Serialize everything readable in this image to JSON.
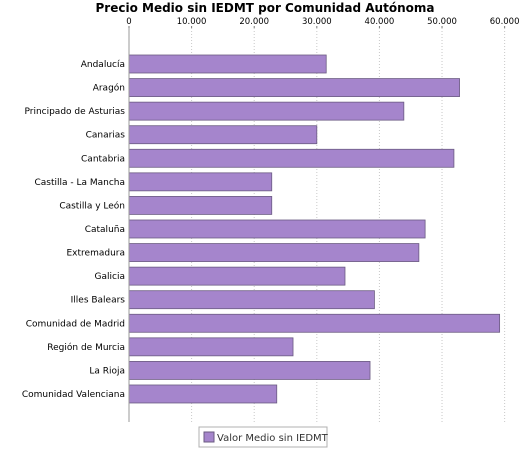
{
  "chart_data": {
    "type": "bar",
    "orientation": "horizontal",
    "title": "Precio Medio sin IEDMT por Comunidad Autónoma",
    "xlabel": "",
    "ylabel": "",
    "xlim": [
      0,
      62000
    ],
    "ticks": [
      0,
      10000,
      20000,
      30000,
      40000,
      50000,
      60000
    ],
    "tick_labels": [
      "0",
      "10.000",
      "20.000",
      "30.000",
      "40.000",
      "50.000",
      "60.000"
    ],
    "tick_position": "top",
    "grid": true,
    "legend": "bottom",
    "bar_color": "#a585cc",
    "categories": [
      "Andalucía",
      "Aragón",
      "Principado de Asturias",
      "Canarias",
      "Cantabria",
      "Castilla - La Mancha",
      "Castilla y León",
      "Cataluña",
      "Extremadura",
      "Galicia",
      "Illes Balears",
      "Comunidad de Madrid",
      "Región de Murcia",
      "La Rioja",
      "Comunidad Valenciana"
    ],
    "series": [
      {
        "name": "Valor Medio sin IEDMT",
        "values": [
          31500,
          52800,
          43900,
          30000,
          51900,
          22800,
          22800,
          47300,
          46300,
          34500,
          39200,
          59200,
          26200,
          38500,
          23600
        ]
      }
    ]
  }
}
